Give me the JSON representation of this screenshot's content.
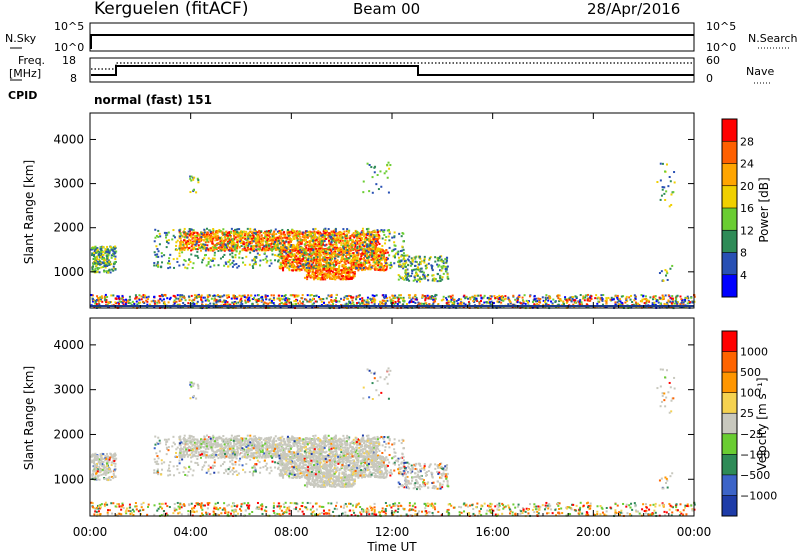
{
  "header": {
    "title": "Kerguelen (fitACF)",
    "beam": "Beam 00",
    "date": "28/Apr/2016"
  },
  "top_panel": {
    "left_label": "N.Sky",
    "right_label": "N.Search",
    "left_ticks": [
      "10^5",
      "10^0"
    ],
    "right_ticks": [
      "10^5",
      "10^0"
    ]
  },
  "freq_panel": {
    "left_label_1": "Freq.",
    "left_label_2": "[MHz]",
    "right_label": "Nave",
    "left_ticks": [
      "18",
      "8"
    ],
    "right_ticks": [
      "60",
      "0"
    ],
    "cpid_label": "CPID",
    "cpid_text": "normal (fast) 151"
  },
  "chart_data": [
    {
      "type": "heatmap",
      "name": "power-panel",
      "ylabel": "Slant Range [km]",
      "ylim": [
        180,
        4600
      ],
      "yticks": [
        1000,
        2000,
        3000,
        4000
      ],
      "colorbar": {
        "label": "Power [dB]",
        "ticks": [
          "4",
          "8",
          "12",
          "16",
          "20",
          "24",
          "28"
        ],
        "colors": [
          "#0000ff",
          "#2850b4",
          "#2e8b57",
          "#6acd32",
          "#f0d000",
          "#ffa500",
          "#ff6000",
          "#ff0000"
        ]
      }
    },
    {
      "type": "heatmap",
      "name": "velocity-panel",
      "ylabel": "Slant Range [km]",
      "ylim": [
        180,
        4600
      ],
      "yticks": [
        1000,
        2000,
        3000,
        4000
      ],
      "colorbar": {
        "label": "Velocity [m s⁻¹]",
        "ticks": [
          "1000",
          "500",
          "100",
          "25",
          "−25",
          "−100",
          "−500",
          "−1000"
        ],
        "colors": [
          "#1e3ca8",
          "#3c64c8",
          "#2e8b57",
          "#6acd32",
          "#c8c8be",
          "#f5d250",
          "#ff9600",
          "#ff6400",
          "#ff0000"
        ]
      }
    }
  ],
  "xaxis": {
    "label": "Time UT",
    "ticks": [
      "00:00",
      "04:00",
      "08:00",
      "12:00",
      "16:00",
      "20:00",
      "00:00"
    ]
  }
}
